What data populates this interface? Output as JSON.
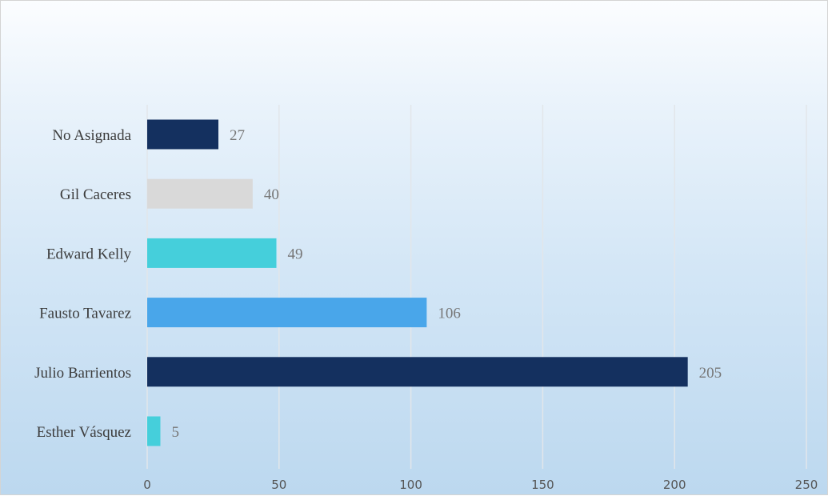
{
  "chart_data": {
    "type": "bar",
    "orientation": "horizontal",
    "title": "",
    "xlabel": "",
    "ylabel": "",
    "xlim": [
      0,
      250
    ],
    "x_ticks": [
      0,
      50,
      100,
      150,
      200,
      250
    ],
    "grid": "vertical",
    "legend": "none",
    "categories": [
      "No Asignada",
      "Gil Caceres",
      "Edward Kelly",
      "Fausto Tavarez",
      "Julio Barrientos",
      "Esther Vásquez"
    ],
    "values": [
      27,
      40,
      49,
      106,
      205,
      5
    ],
    "bar_colors": [
      "#14305f",
      "#d9d9d9",
      "#45cfdb",
      "#49a6ea",
      "#14305f",
      "#45cfdb"
    ],
    "data_labels": [
      "27",
      "40",
      "49",
      "106",
      "205",
      "5"
    ]
  }
}
